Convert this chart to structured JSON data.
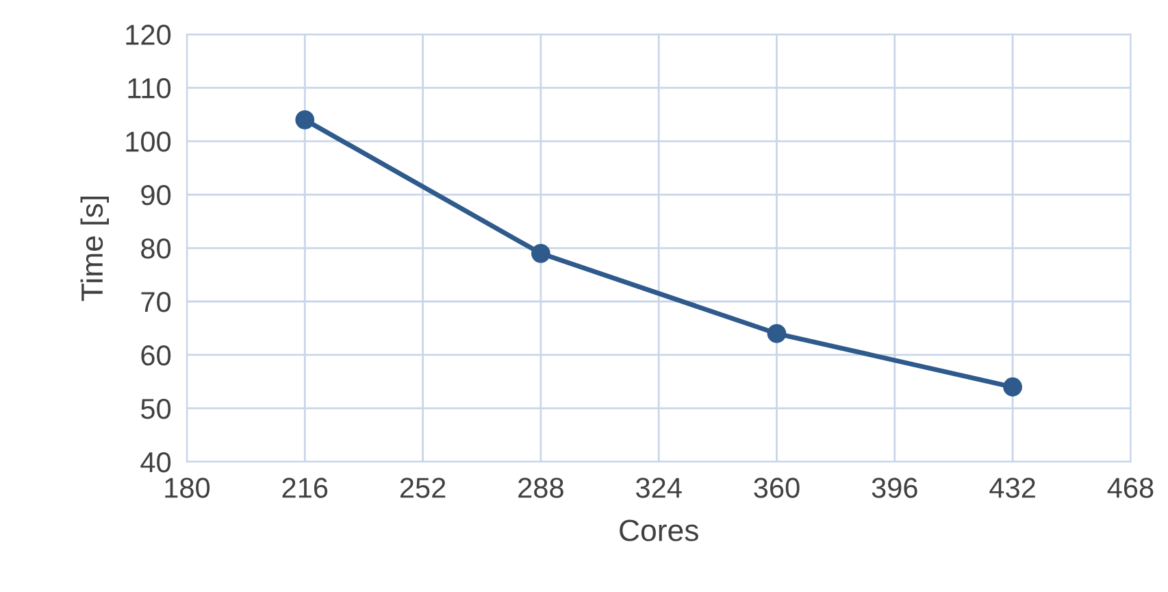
{
  "chart_data": {
    "type": "line",
    "xlabel": "Cores",
    "ylabel": "Time [s]",
    "x": [
      216,
      288,
      360,
      432
    ],
    "series": [
      {
        "color": "#2e5a8c",
        "values": [
          104,
          79,
          64,
          54
        ]
      }
    ],
    "xlim": [
      180,
      468
    ],
    "xticks": [
      180,
      216,
      252,
      288,
      324,
      360,
      396,
      432,
      468
    ],
    "ylim": [
      40,
      120
    ],
    "yticks": [
      40,
      50,
      60,
      70,
      80,
      90,
      100,
      110,
      120
    ],
    "grid": true,
    "marker": "circle",
    "line_style": "solid"
  }
}
